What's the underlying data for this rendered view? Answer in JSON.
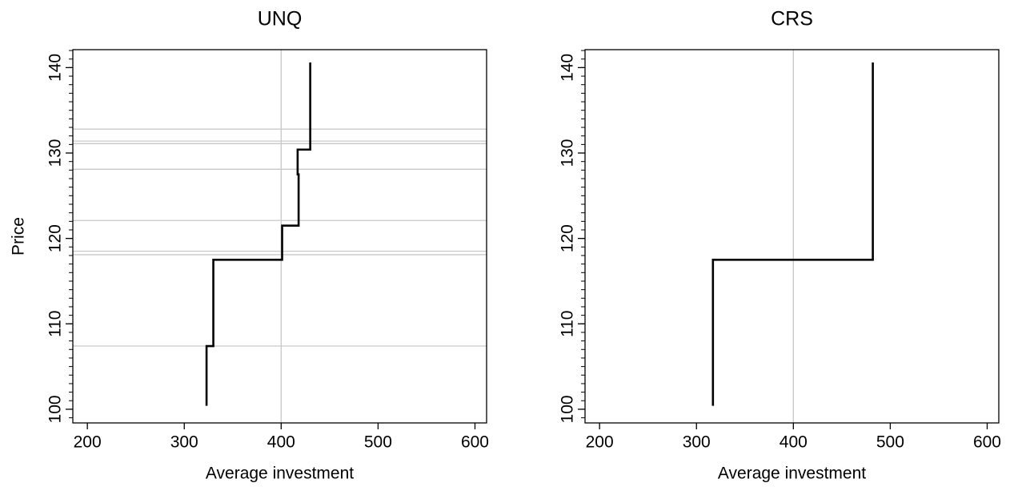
{
  "chart_data": [
    {
      "type": "line",
      "title": "UNQ",
      "x_label": "Average investment",
      "y_label": "Price",
      "x": [
        323,
        323,
        330,
        330,
        401,
        401,
        418,
        418,
        417,
        417,
        430,
        430
      ],
      "values": [
        100.4,
        107.4,
        107.4,
        117.5,
        117.5,
        121.5,
        121.5,
        127.5,
        127.5,
        130.4,
        130.4,
        140.6
      ],
      "color": "#000000",
      "hlines": [
        132.8,
        131.4,
        131.1,
        128.1,
        122.1,
        118.5,
        118.1,
        107.4
      ],
      "vlines": [
        400
      ],
      "xlim": [
        185,
        612
      ],
      "ylim": [
        98.4,
        142.1
      ],
      "xticks": [
        200,
        300,
        400,
        500,
        600
      ],
      "yticks": [
        100,
        110,
        120,
        130,
        140
      ],
      "y_minor_tick_step": 1
    },
    {
      "type": "line",
      "title": "CRS",
      "x_label": "Average investment",
      "x": [
        317,
        317,
        482,
        482
      ],
      "values": [
        100.4,
        117.5,
        117.5,
        140.6
      ],
      "color": "#000000",
      "hlines": [],
      "vlines": [
        400
      ],
      "xlim": [
        185,
        612
      ],
      "ylim": [
        98.4,
        142.1
      ],
      "xticks": [
        200,
        300,
        400,
        500,
        600
      ],
      "yticks": [
        100,
        110,
        120,
        130,
        140
      ],
      "y_minor_tick_step": 1
    }
  ]
}
